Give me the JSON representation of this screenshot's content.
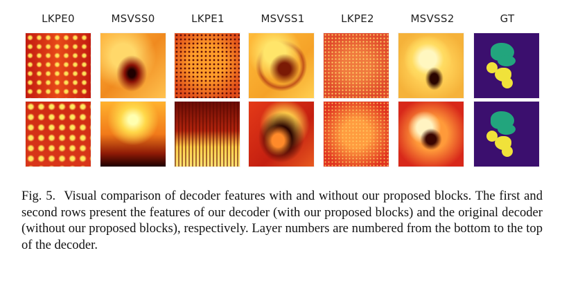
{
  "columns": [
    "LKPE0",
    "MSVSS0",
    "LKPE1",
    "MSVSS1",
    "LKPE2",
    "MSVSS2",
    "GT"
  ],
  "caption": {
    "label": "Fig. 5.",
    "text": "Visual comparison of decoder features with and without our proposed blocks. The first and second rows present the features of our decoder (with our proposed blocks) and the original decoder (without our proposed blocks), respectively. Layer numbers are numbered from the bottom to the top of the decoder."
  },
  "colors": {
    "gt_background": "#3b0f6e",
    "gt_region_teal": "#22a57d",
    "gt_region_yellow": "#f0e23a"
  }
}
